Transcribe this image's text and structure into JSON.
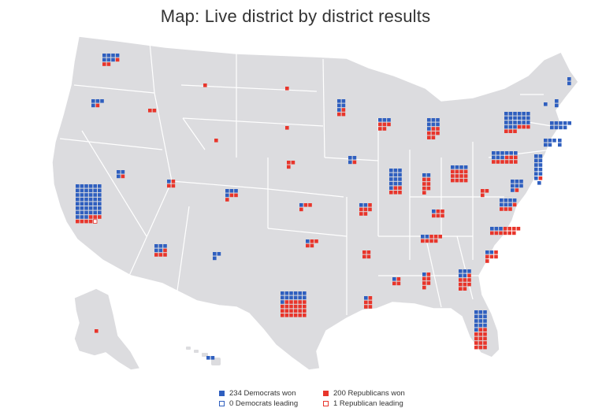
{
  "title": "Map: Live district by district results",
  "colors": {
    "land": "#dcdcdf",
    "border": "#ffffff",
    "democrat": "#2f5fbf",
    "republican": "#e8352b",
    "text": "#333333"
  },
  "legend": {
    "dem_won": "234 Democrats won",
    "dem_leading": "0 Democrats leading",
    "rep_won": "200 Republicans won",
    "rep_leading": "1 Republican leading"
  },
  "totals": {
    "dem_won": 234,
    "dem_leading": 0,
    "rep_won": 200,
    "rep_leading": 1
  },
  "states": [
    {
      "name": "WA",
      "dem_won": 7,
      "rep_won": 3,
      "rep_leading": 0
    },
    {
      "name": "OR",
      "dem_won": 4,
      "rep_won": 1,
      "rep_leading": 0
    },
    {
      "name": "CA",
      "dem_won": 45,
      "rep_won": 7,
      "rep_leading": 1
    },
    {
      "name": "NV",
      "dem_won": 3,
      "rep_won": 1,
      "rep_leading": 0
    },
    {
      "name": "ID",
      "dem_won": 0,
      "rep_won": 2,
      "rep_leading": 0
    },
    {
      "name": "MT",
      "dem_won": 0,
      "rep_won": 1,
      "rep_leading": 0
    },
    {
      "name": "WY",
      "dem_won": 0,
      "rep_won": 1,
      "rep_leading": 0
    },
    {
      "name": "UT",
      "dem_won": 1,
      "rep_won": 3,
      "rep_leading": 0
    },
    {
      "name": "CO",
      "dem_won": 4,
      "rep_won": 3,
      "rep_leading": 0
    },
    {
      "name": "AZ",
      "dem_won": 5,
      "rep_won": 4,
      "rep_leading": 0
    },
    {
      "name": "NM",
      "dem_won": 3,
      "rep_won": 0,
      "rep_leading": 0
    },
    {
      "name": "ND",
      "dem_won": 0,
      "rep_won": 1,
      "rep_leading": 0
    },
    {
      "name": "SD",
      "dem_won": 0,
      "rep_won": 1,
      "rep_leading": 0
    },
    {
      "name": "NE",
      "dem_won": 0,
      "rep_won": 3,
      "rep_leading": 0
    },
    {
      "name": "KS",
      "dem_won": 1,
      "rep_won": 3,
      "rep_leading": 0
    },
    {
      "name": "OK",
      "dem_won": 1,
      "rep_won": 4,
      "rep_leading": 0
    },
    {
      "name": "TX",
      "dem_won": 13,
      "rep_won": 23,
      "rep_leading": 0
    },
    {
      "name": "MN",
      "dem_won": 5,
      "rep_won": 3,
      "rep_leading": 0
    },
    {
      "name": "IA",
      "dem_won": 3,
      "rep_won": 1,
      "rep_leading": 0
    },
    {
      "name": "MO",
      "dem_won": 2,
      "rep_won": 6,
      "rep_leading": 0
    },
    {
      "name": "AR",
      "dem_won": 0,
      "rep_won": 4,
      "rep_leading": 0
    },
    {
      "name": "LA",
      "dem_won": 1,
      "rep_won": 5,
      "rep_leading": 0
    },
    {
      "name": "WI",
      "dem_won": 3,
      "rep_won": 5,
      "rep_leading": 0
    },
    {
      "name": "IL",
      "dem_won": 13,
      "rep_won": 5,
      "rep_leading": 0
    },
    {
      "name": "MI",
      "dem_won": 7,
      "rep_won": 7,
      "rep_leading": 0
    },
    {
      "name": "IN",
      "dem_won": 2,
      "rep_won": 7,
      "rep_leading": 0
    },
    {
      "name": "OH",
      "dem_won": 4,
      "rep_won": 12,
      "rep_leading": 0
    },
    {
      "name": "KY",
      "dem_won": 1,
      "rep_won": 5,
      "rep_leading": 0
    },
    {
      "name": "TN",
      "dem_won": 2,
      "rep_won": 7,
      "rep_leading": 0
    },
    {
      "name": "MS",
      "dem_won": 1,
      "rep_won": 3,
      "rep_leading": 0
    },
    {
      "name": "AL",
      "dem_won": 1,
      "rep_won": 6,
      "rep_leading": 0
    },
    {
      "name": "GA",
      "dem_won": 5,
      "rep_won": 9,
      "rep_leading": 0
    },
    {
      "name": "FL",
      "dem_won": 13,
      "rep_won": 14,
      "rep_leading": 0
    },
    {
      "name": "SC",
      "dem_won": 2,
      "rep_won": 5,
      "rep_leading": 0
    },
    {
      "name": "NC",
      "dem_won": 3,
      "rep_won": 10,
      "rep_leading": 0
    },
    {
      "name": "VA",
      "dem_won": 7,
      "rep_won": 4,
      "rep_leading": 0
    },
    {
      "name": "WV",
      "dem_won": 0,
      "rep_won": 3,
      "rep_leading": 0
    },
    {
      "name": "PA",
      "dem_won": 9,
      "rep_won": 9,
      "rep_leading": 0
    },
    {
      "name": "NY",
      "dem_won": 21,
      "rep_won": 6,
      "rep_leading": 0
    },
    {
      "name": "MD",
      "dem_won": 7,
      "rep_won": 1,
      "rep_leading": 0
    },
    {
      "name": "DE",
      "dem_won": 1,
      "rep_won": 0,
      "rep_leading": 0
    },
    {
      "name": "NJ",
      "dem_won": 11,
      "rep_won": 1,
      "rep_leading": 0
    },
    {
      "name": "CT",
      "dem_won": 5,
      "rep_won": 0,
      "rep_leading": 0
    },
    {
      "name": "RI",
      "dem_won": 2,
      "rep_won": 0,
      "rep_leading": 0
    },
    {
      "name": "MA",
      "dem_won": 9,
      "rep_won": 0,
      "rep_leading": 0
    },
    {
      "name": "VT",
      "dem_won": 1,
      "rep_won": 0,
      "rep_leading": 0
    },
    {
      "name": "NH",
      "dem_won": 2,
      "rep_won": 0,
      "rep_leading": 0
    },
    {
      "name": "ME",
      "dem_won": 2,
      "rep_won": 0,
      "rep_leading": 0
    },
    {
      "name": "AK",
      "dem_won": 0,
      "rep_won": 1,
      "rep_leading": 0
    },
    {
      "name": "HI",
      "dem_won": 2,
      "rep_won": 0,
      "rep_leading": 0
    }
  ]
}
